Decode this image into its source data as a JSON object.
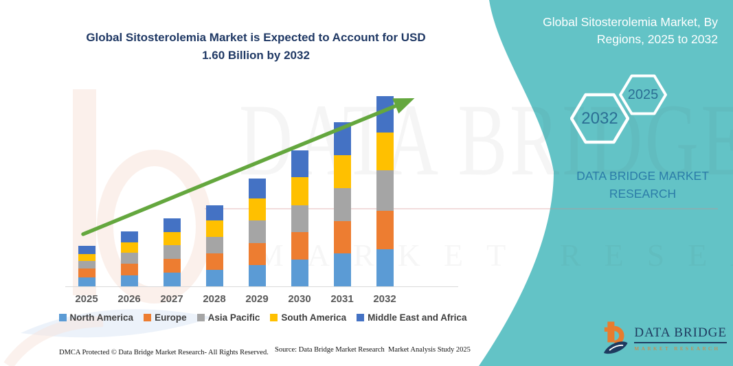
{
  "header": {
    "title": "Global Sitosterolemia Market is Expected to Account for USD 1.60 Billion by 2032"
  },
  "side_panel": {
    "background_color": "#63C3C6",
    "title": "Global Sitosterolemia Market, By Regions, 2025 to 2032",
    "hexagons": [
      {
        "label": "2032"
      },
      {
        "label": "2025"
      }
    ],
    "brand_line1": "DATA BRIDGE MARKET",
    "brand_line2": "RESEARCH",
    "text_color": "#2B7CA8"
  },
  "chart_data": {
    "type": "bar",
    "stacked": true,
    "unit": "USD Billion",
    "title": "Global Sitosterolemia Market, By Regions, 2025 to 2032",
    "categories": [
      "2025",
      "2026",
      "2027",
      "2028",
      "2029",
      "2030",
      "2031",
      "2032"
    ],
    "series": [
      {
        "name": "North America",
        "color": "#5B9BD5",
        "values": [
          0.075,
          0.095,
          0.115,
          0.14,
          0.18,
          0.225,
          0.275,
          0.31
        ]
      },
      {
        "name": "Europe",
        "color": "#ED7D31",
        "values": [
          0.075,
          0.1,
          0.115,
          0.14,
          0.185,
          0.23,
          0.27,
          0.325
        ]
      },
      {
        "name": "Asia Pacific",
        "color": "#A5A5A5",
        "values": [
          0.065,
          0.09,
          0.115,
          0.14,
          0.19,
          0.225,
          0.275,
          0.34
        ]
      },
      {
        "name": "South America",
        "color": "#FFC000",
        "values": [
          0.055,
          0.085,
          0.11,
          0.14,
          0.185,
          0.235,
          0.275,
          0.32
        ]
      },
      {
        "name": "Middle East and Africa",
        "color": "#4472C4",
        "values": [
          0.07,
          0.09,
          0.115,
          0.13,
          0.17,
          0.225,
          0.275,
          0.305
        ]
      }
    ],
    "totals_estimated": [
      0.34,
      0.46,
      0.57,
      0.69,
      0.91,
      1.14,
      1.37,
      1.6
    ],
    "highlight_value": "USD 1.60 Billion by 2032",
    "xlabel": "",
    "ylabel": "",
    "ylim": [
      0,
      1.7
    ],
    "gridlines": false,
    "legend_position": "bottom",
    "annotations": [
      {
        "type": "growth-arrow",
        "color": "#64A73E"
      }
    ]
  },
  "footer": {
    "dmca": "DMCA Protected © Data Bridge Market Research- All Rights Reserved.",
    "source": "Source: Data Bridge Market Research  Market Analysis Study 2025"
  },
  "logo": {
    "title": "DATA BRIDGE",
    "subtitle": "MARKET RESEARCH",
    "navy": "#1E3A5F",
    "orange": "#E87C2E"
  },
  "watermark": {
    "line1": "DATA BRIDGE",
    "line2": "MARKET RESEARCH"
  }
}
